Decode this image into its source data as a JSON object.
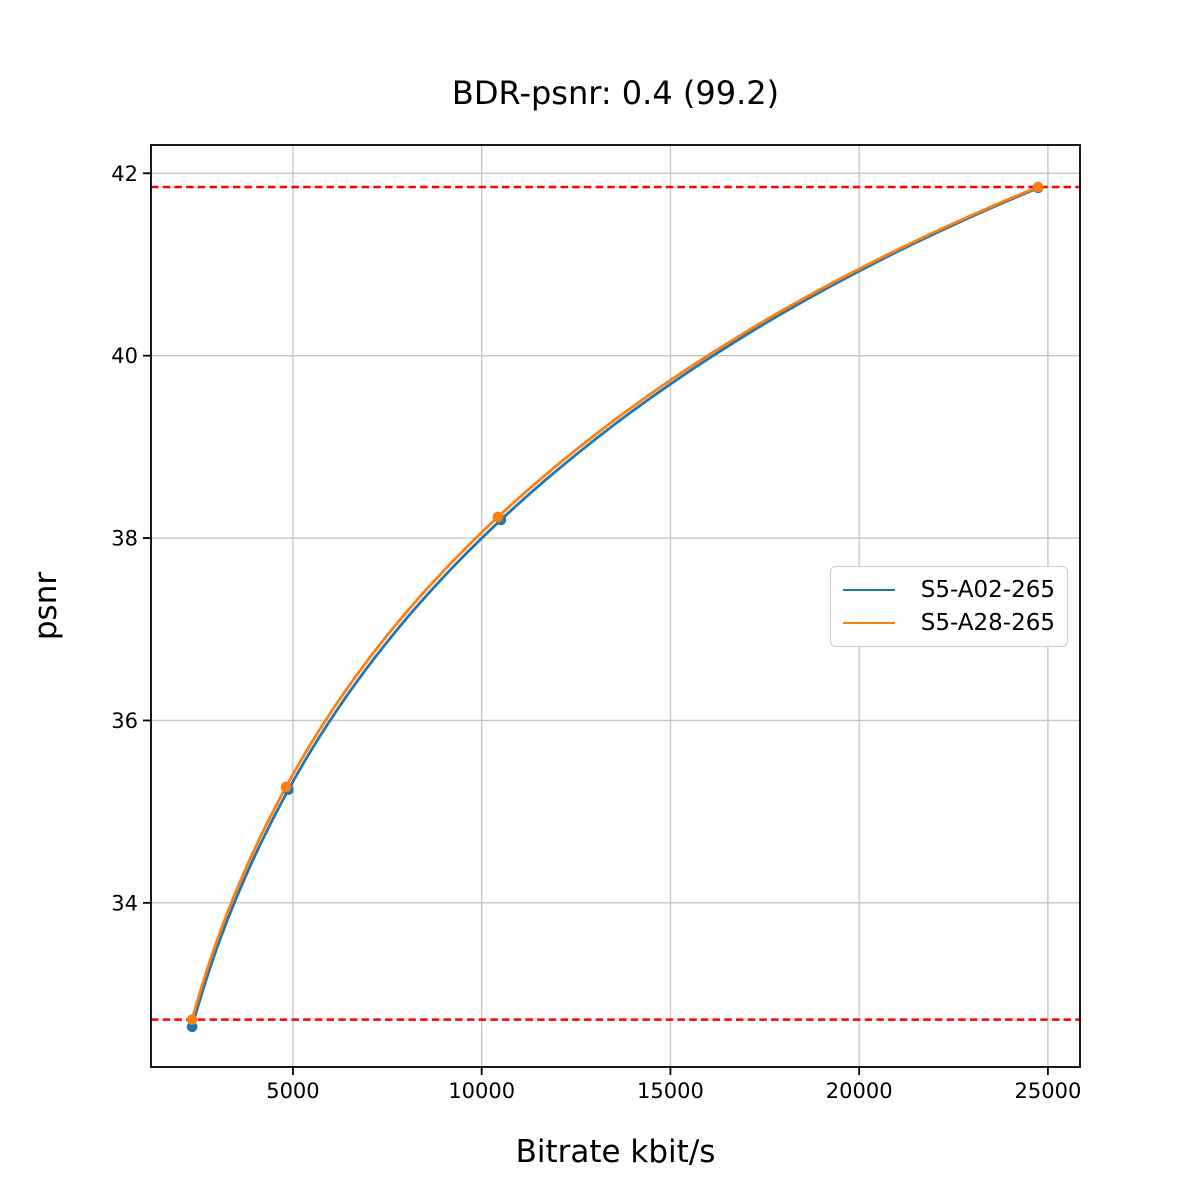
{
  "title": "BDR-psnr: 0.4 (99.2)",
  "axes": {
    "xlabel": "Bitrate kbit/s",
    "ylabel": "psnr"
  },
  "legend": {
    "items": [
      {
        "label": "S5-A02-265",
        "color": "#1f77b4"
      },
      {
        "label": "S5-A28-265",
        "color": "#ff7f0e"
      }
    ]
  },
  "colors": {
    "background": "#ffffff",
    "grid": "#c6c6c6",
    "spine": "#000000",
    "bd_limit": "#ff0000",
    "series_blue": "#1f77b4",
    "series_orange": "#ff7f0e"
  },
  "chart_data": {
    "type": "line",
    "title": "BDR-psnr: 0.4 (99.2)",
    "xlabel": "Bitrate kbit/s",
    "ylabel": "psnr",
    "xlim": [
      1240,
      25850
    ],
    "ylim": [
      32.2,
      42.31
    ],
    "xticks": [
      5000,
      10000,
      15000,
      20000,
      25000
    ],
    "yticks": [
      34,
      36,
      38,
      40,
      42
    ],
    "grid": true,
    "legend_position": "center right",
    "series": [
      {
        "name": "S5-A02-265",
        "color": "#1f77b4",
        "marker": "o",
        "x": [
          2330,
          4880,
          10510,
          24740
        ],
        "y": [
          32.64,
          35.24,
          38.2,
          41.84
        ]
      },
      {
        "name": "S5-A28-265",
        "color": "#ff7f0e",
        "marker": "o",
        "x": [
          2330,
          4815,
          10430,
          24740
        ],
        "y": [
          32.72,
          35.27,
          38.23,
          41.85
        ]
      }
    ],
    "hlines": {
      "color": "#ff0000",
      "style": "dashed",
      "values": [
        32.72,
        41.85
      ]
    },
    "grid_color": "#c6c6c6"
  }
}
